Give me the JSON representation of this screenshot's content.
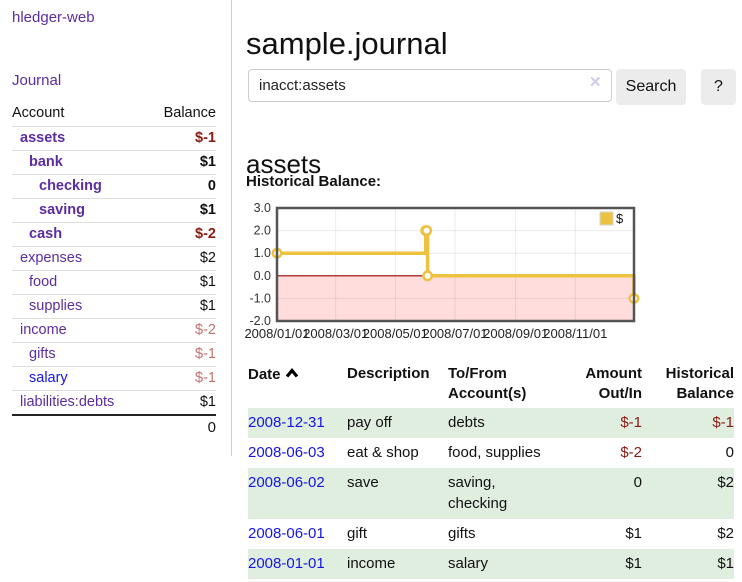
{
  "colors": {
    "link_purple": "#5c2da2",
    "link_blue": "#1515e6",
    "negative_strong": "#8b1a10",
    "negative_faded": "#c0736f",
    "row_stripe_green": "#e0eee0",
    "chart_line_gold": "#edc240",
    "chart_negative_region": "#ffdddd",
    "chart_zero_line": "#990000"
  },
  "sidebar": {
    "brand": "hledger-web",
    "journal_link": "Journal",
    "accounts_table": {
      "headers": {
        "account": "Account",
        "balance": "Balance"
      },
      "rows": [
        {
          "name": "assets",
          "depth": 1,
          "balance": "$-1"
        },
        {
          "name": "bank",
          "depth": 2,
          "balance": "$1"
        },
        {
          "name": "checking",
          "depth": 3,
          "balance": "0"
        },
        {
          "name": "saving",
          "depth": 3,
          "balance": "$1"
        },
        {
          "name": "cash",
          "depth": 2,
          "balance": "$-2"
        },
        {
          "name": "expenses",
          "depth": 1,
          "balance": "$2"
        },
        {
          "name": "food",
          "depth": 2,
          "balance": "$1"
        },
        {
          "name": "supplies",
          "depth": 2,
          "balance": "$1"
        },
        {
          "name": "income",
          "depth": 1,
          "balance": "$-2"
        },
        {
          "name": "gifts",
          "depth": 2,
          "balance": "$-1"
        },
        {
          "name": "salary",
          "depth": 2,
          "balance": "$-1"
        },
        {
          "name": "liabilities:debts",
          "depth": 1,
          "balance": "$1"
        }
      ],
      "total": "0"
    }
  },
  "main": {
    "title": "sample.journal",
    "search": {
      "value": "inacct:assets",
      "clear_icon": "✕",
      "button_label": "Search",
      "help_label": "?"
    },
    "account_heading": "assets",
    "chart_label": "Historical Balance:"
  },
  "chart_data": {
    "type": "line",
    "title": "Historical Balance:",
    "series": [
      {
        "name": "$",
        "style": "step",
        "color": "#edc240",
        "points": [
          [
            "2008-01-01",
            1
          ],
          [
            "2008-06-01",
            2
          ],
          [
            "2008-06-02",
            2
          ],
          [
            "2008-06-03",
            0
          ],
          [
            "2008-12-31",
            -1
          ]
        ]
      }
    ],
    "xlim": [
      "2008-01-01",
      "2008-12-31"
    ],
    "ylim": [
      -2,
      3
    ],
    "x_ticks": [
      {
        "date": "2008-01-01",
        "label": "2008/01/01"
      },
      {
        "date": "2008-03-01",
        "label": "2008/03/01"
      },
      {
        "date": "2008-05-01",
        "label": "2008/05/01"
      },
      {
        "date": "2008-07-01",
        "label": "2008/07/01"
      },
      {
        "date": "2008-09-01",
        "label": "2008/09/01"
      },
      {
        "date": "2008-11-01",
        "label": "2008/11/01"
      }
    ],
    "y_ticks": [
      {
        "v": 3,
        "label": "3.0"
      },
      {
        "v": 2,
        "label": "2.0"
      },
      {
        "v": 1,
        "label": "1.0"
      },
      {
        "v": 0,
        "label": "0.0"
      },
      {
        "v": -1,
        "label": "-1.0"
      },
      {
        "v": -2,
        "label": "-2.0"
      }
    ],
    "legend_position": "top-right",
    "grid": true,
    "negative_region_color": "#ffdddd",
    "zero_line_color": "#990000"
  },
  "register_table": {
    "headers": {
      "date": "Date",
      "description": "Description",
      "tofrom": "To/From Account(s)",
      "amount": "Amount Out/In",
      "historical": "Historical Balance"
    },
    "rows": [
      {
        "date": "2008-12-31",
        "description": "pay off",
        "tofrom": "debts",
        "amount": "$-1",
        "historical": "$-1"
      },
      {
        "date": "2008-06-03",
        "description": "eat & shop",
        "tofrom": "food, supplies",
        "amount": "$-2",
        "historical": "0"
      },
      {
        "date": "2008-06-02",
        "description": "save",
        "tofrom": "saving,\nchecking",
        "amount": "0",
        "historical": "$2"
      },
      {
        "date": "2008-06-01",
        "description": "gift",
        "tofrom": "gifts",
        "amount": "$1",
        "historical": "$2"
      },
      {
        "date": "2008-01-01",
        "description": "income",
        "tofrom": "salary",
        "amount": "$1",
        "historical": "$1"
      }
    ]
  }
}
